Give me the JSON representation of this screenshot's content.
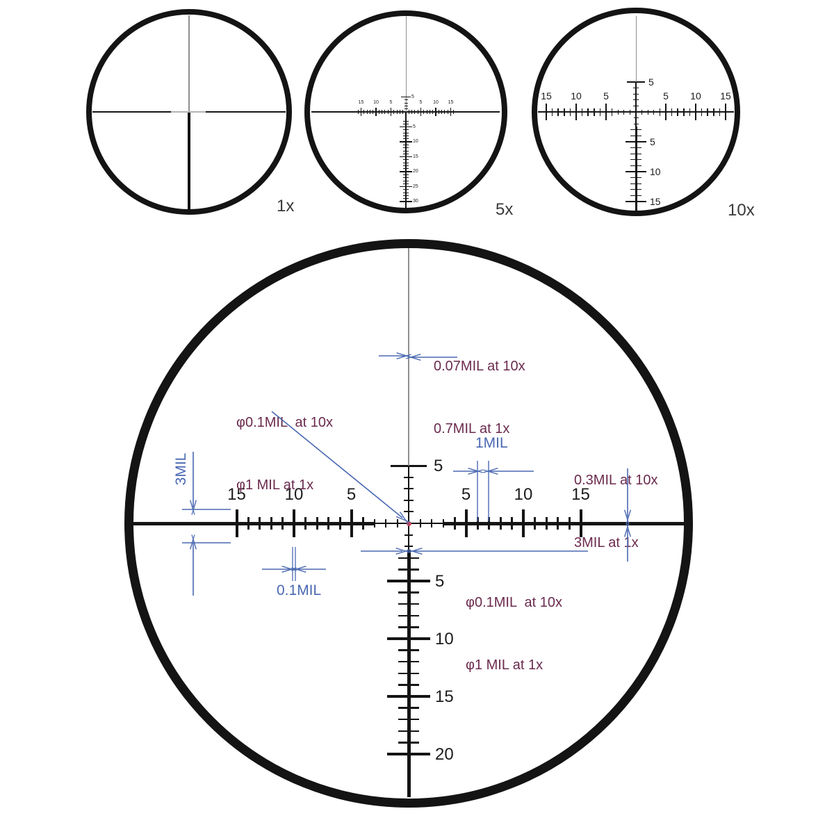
{
  "views": [
    {
      "label": "1x"
    },
    {
      "label": "5x",
      "h_left": [
        "15",
        "10",
        "5"
      ],
      "h_right": [
        "5",
        "10",
        "15"
      ],
      "v_above": [
        "5"
      ],
      "v_below": [
        "5",
        "10",
        "15",
        "20",
        "25",
        "30"
      ]
    },
    {
      "label": "10x",
      "h_left": [
        "15",
        "10",
        "5"
      ],
      "h_right": [
        "5",
        "10",
        "15"
      ],
      "v_above": [
        "5"
      ],
      "v_below": [
        "5",
        "10",
        "15"
      ]
    }
  ],
  "main_reticle": {
    "h_left": [
      "15",
      "10",
      "5"
    ],
    "h_right": [
      "5",
      "10",
      "15"
    ],
    "v_above": [
      "5"
    ],
    "v_below": [
      "5",
      "10",
      "15",
      "20"
    ]
  },
  "annotations": {
    "top_line_width": [
      "0.07MIL at 10x",
      "0.7MIL at 1x"
    ],
    "center_dot": [
      "φ0.1MIL  at 10x",
      "φ1 MIL at 1x"
    ],
    "right_post_width": [
      "0.3MIL at 10x",
      "3MIL at 1x"
    ],
    "below_line_width": [
      "φ0.1MIL  at 10x",
      "φ1 MIL at 1x"
    ],
    "one_mil": "1MIL",
    "point_one_mil": "0.1MIL",
    "three_mil": "3MIL"
  },
  "colors": {
    "reticle_black": "#141414",
    "thin_gray": "#8f8f8f",
    "annotation_maroon": "#6b2b4e",
    "dimension_blue": "#4a68b2",
    "center_dot_red": "#c9485b"
  }
}
